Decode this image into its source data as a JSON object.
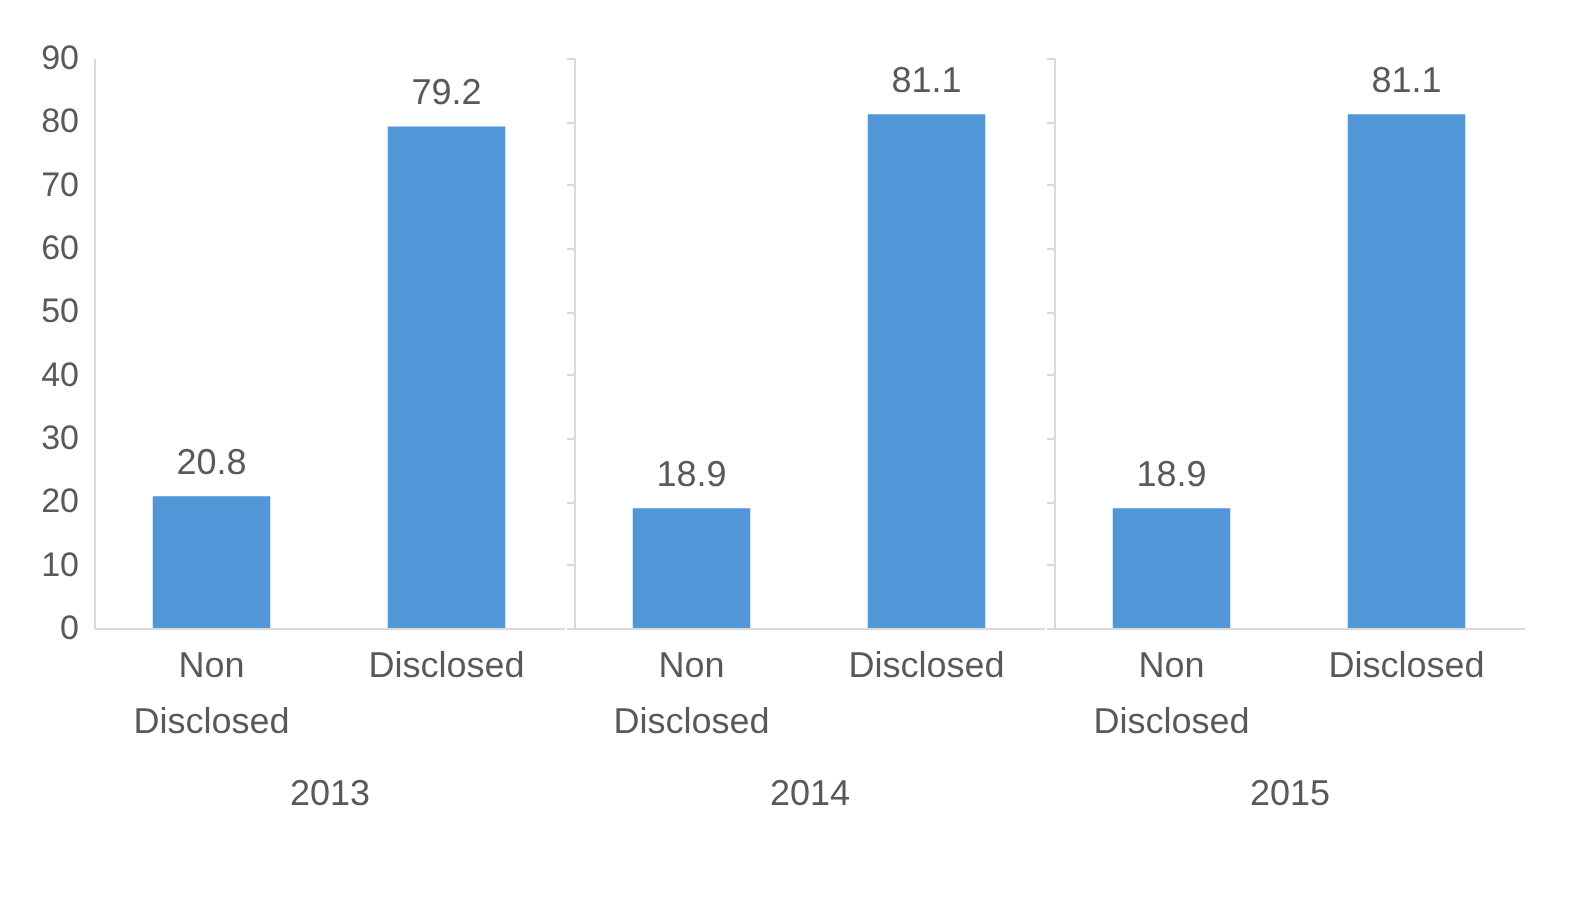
{
  "chart_data": [
    {
      "type": "bar",
      "categories": [
        "Non Disclosed",
        "Disclosed"
      ],
      "xlabel": "2013",
      "values": [
        20.8,
        79.2
      ],
      "color": "#5197d8",
      "ylim": [
        0,
        90
      ],
      "yticks": [
        0,
        10,
        20,
        30,
        40,
        50,
        60,
        70,
        80,
        90
      ],
      "data_labels": true
    },
    {
      "type": "bar",
      "categories": [
        "Non Disclosed",
        "Disclosed"
      ],
      "xlabel": "2014",
      "values": [
        18.9,
        81.1
      ],
      "color": "#5197d8",
      "ylim": [
        0,
        90
      ],
      "yticks": [
        0,
        10,
        20,
        30,
        40,
        50,
        60,
        70,
        80,
        90
      ],
      "data_labels": true,
      "tick_labels": "x"
    },
    {
      "type": "bar",
      "categories": [
        "Non Disclosed",
        "Disclosed"
      ],
      "xlabel": "2015",
      "values": [
        18.9,
        81.1
      ],
      "color": "#5197d8",
      "ylim": [
        0,
        90
      ],
      "yticks": [
        0,
        10,
        20,
        30,
        40,
        50,
        60,
        70,
        80,
        90
      ],
      "data_labels": true,
      "tick_labels": "x"
    }
  ]
}
